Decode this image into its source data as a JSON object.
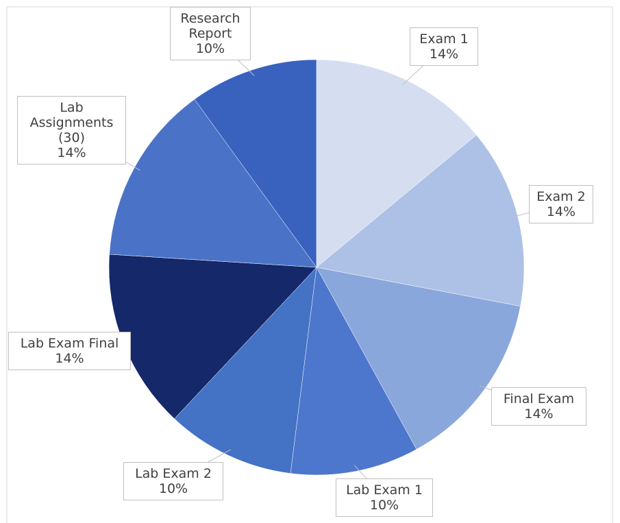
{
  "chart_data": {
    "type": "pie",
    "categories": [
      "Exam 1",
      "Exam 2",
      "Final Exam",
      "Lab Exam 1",
      "Lab Exam 2",
      "Lab Exam Final",
      "Lab Assignments (30)",
      "Research Report"
    ],
    "values": [
      14,
      14,
      14,
      10,
      10,
      14,
      14,
      10
    ],
    "value_labels": [
      "14%",
      "14%",
      "14%",
      "10%",
      "10%",
      "14%",
      "14%",
      "10%"
    ],
    "colors": [
      "#d5def0",
      "#adc0e6",
      "#8aa7dc",
      "#4d77cc",
      "#4472c4",
      "#14286a",
      "#4a73c8",
      "#3962bf"
    ]
  }
}
